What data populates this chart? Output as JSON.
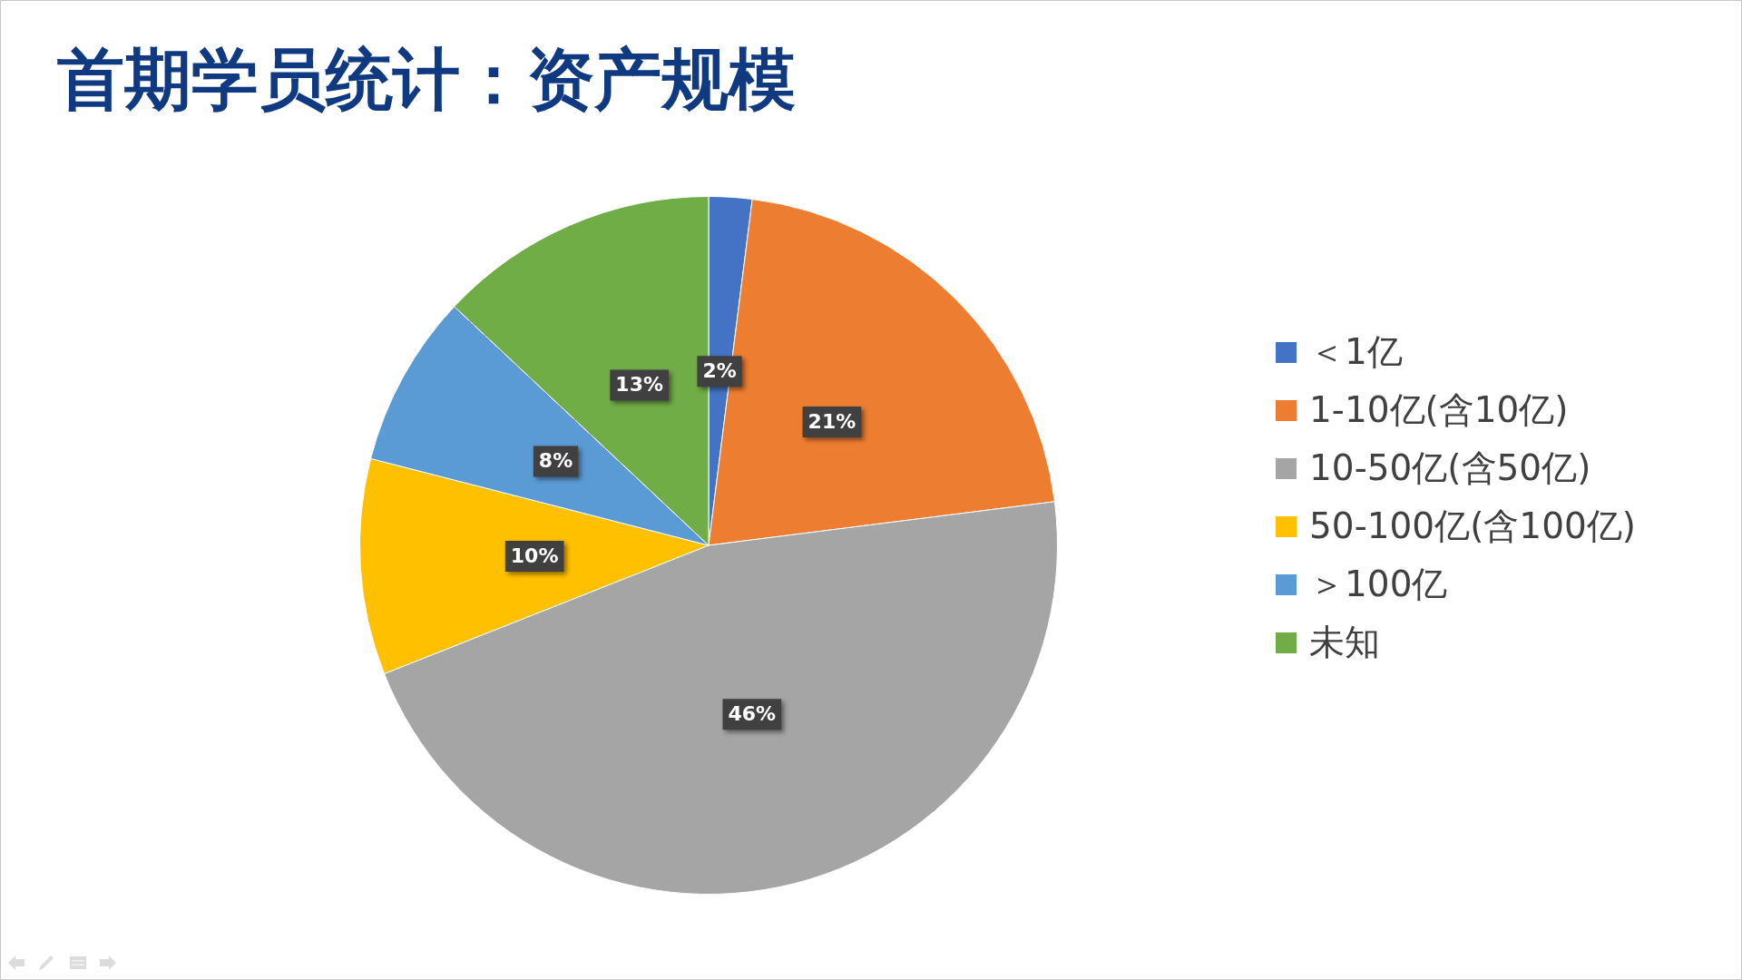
{
  "chart_data": {
    "type": "pie",
    "title": "首期学员统计：资产规模",
    "categories": [
      "＜1亿",
      "1-10亿(含10亿)",
      "10-50亿(含50亿)",
      "50-100亿(含100亿)",
      "＞100亿",
      "未知"
    ],
    "values": [
      2,
      21,
      46,
      10,
      8,
      13
    ],
    "colors": [
      "#4472c4",
      "#ed7d31",
      "#a5a5a5",
      "#ffc000",
      "#5b9bd5",
      "#70ad47"
    ],
    "value_labels": [
      "2%",
      "21%",
      "46%",
      "10%",
      "8%",
      "13%"
    ],
    "legend": "right"
  }
}
